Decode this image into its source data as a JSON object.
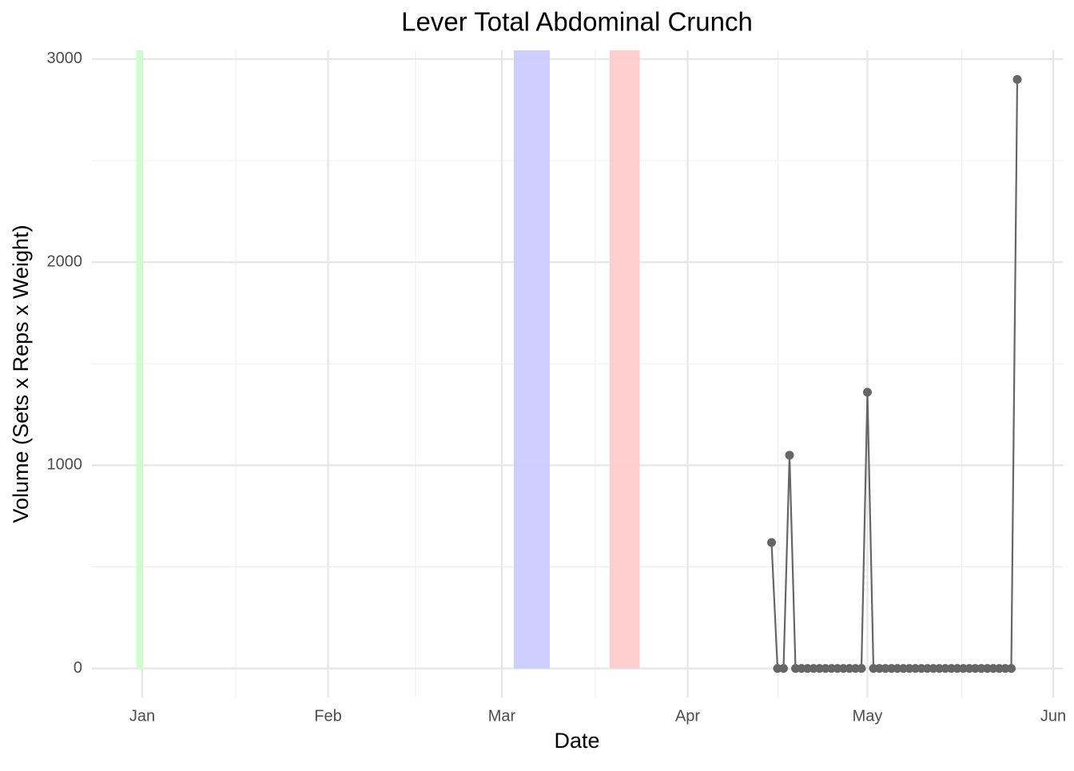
{
  "chart_data": {
    "type": "line",
    "title": "Lever Total Abdominal Crunch",
    "x_label": "Date",
    "y_label": "Volume (Sets x Reps x Weight)",
    "x": [
      105,
      106,
      107,
      108,
      109,
      110,
      111,
      112,
      113,
      114,
      115,
      116,
      117,
      118,
      119,
      120,
      121,
      122,
      123,
      124,
      125,
      126,
      127,
      128,
      129,
      130,
      131,
      132,
      133,
      134,
      135,
      136,
      137,
      138,
      139,
      140,
      141,
      142,
      143,
      144,
      145,
      146
    ],
    "series": [
      {
        "color": "#666666",
        "values": [
          620,
          0,
          0,
          1050,
          0,
          0,
          0,
          0,
          0,
          0,
          0,
          0,
          0,
          0,
          0,
          0,
          1360,
          0,
          0,
          0,
          0,
          0,
          0,
          0,
          0,
          0,
          0,
          0,
          0,
          0,
          0,
          0,
          0,
          0,
          0,
          0,
          0,
          0,
          0,
          0,
          0,
          2900
        ]
      }
    ],
    "bands": [
      {
        "start": -1,
        "end": 0,
        "color": "#ccffcc"
      },
      {
        "start": 62,
        "end": 68,
        "color": "#ccccff"
      },
      {
        "start": 78,
        "end": 83,
        "color": "#ffcccc"
      }
    ],
    "xlim": [
      -8.4,
      153.6
    ],
    "xticks": [
      {
        "value": 0,
        "label": "Jan"
      },
      {
        "value": 31,
        "label": "Feb"
      },
      {
        "value": 60,
        "label": "Mar"
      },
      {
        "value": 91,
        "label": "Apr"
      },
      {
        "value": 121,
        "label": "May"
      },
      {
        "value": 152,
        "label": "Jun"
      }
    ],
    "xminor": [
      15.6,
      45.6,
      75.6,
      106.1,
      136.7
    ],
    "ylim": [
      -143,
      3043
    ],
    "yticks": [
      0,
      1000,
      2000,
      3000
    ],
    "yminor": [
      500,
      1500,
      2500
    ],
    "grid": true
  }
}
